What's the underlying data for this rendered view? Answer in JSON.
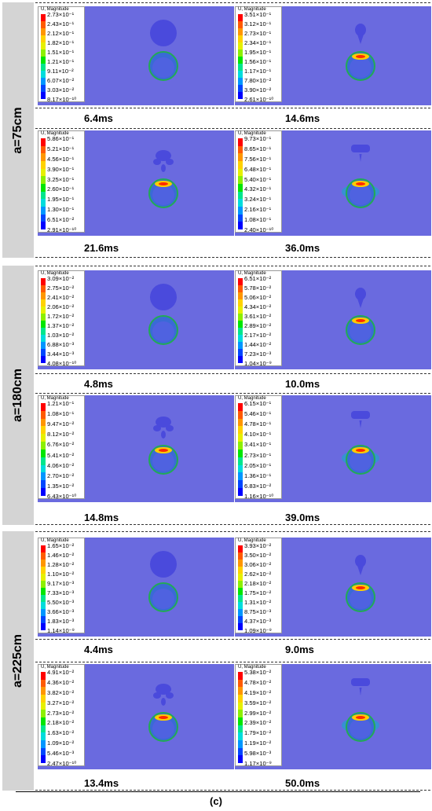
{
  "legend_title": "U, Magnitude",
  "caption": "(c)",
  "colors": [
    "#ff0000",
    "#ff5a00",
    "#ff9600",
    "#ffd200",
    "#e6f000",
    "#8cf000",
    "#00e600",
    "#00e68c",
    "#00dcdc",
    "#0096ff",
    "#0046ff",
    "#0000ff"
  ],
  "groups": [
    {
      "label": "a=75cm",
      "panels": [
        {
          "time": "6.4ms",
          "stage": 0,
          "scale": [
            "2.73×10⁻¹",
            "2.43×10⁻¹",
            "2.12×10⁻¹",
            "1.82×10⁻¹",
            "1.51×10⁻¹",
            "1.21×10⁻¹",
            "9.11×10⁻²",
            "6.07×10⁻²",
            "3.03×10⁻²",
            "8.17×10⁻¹⁰"
          ]
        },
        {
          "time": "14.6ms",
          "stage": 1,
          "scale": [
            "3.51×10⁻¹",
            "3.12×10⁻¹",
            "2.73×10⁻¹",
            "2.34×10⁻¹",
            "1.95×10⁻¹",
            "1.56×10⁻¹",
            "1.17×10⁻¹",
            "7.80×10⁻²",
            "3.90×10⁻²",
            "2.61×10⁻¹⁰"
          ]
        },
        {
          "time": "21.6ms",
          "stage": 2,
          "scale": [
            "5.86×10⁻¹",
            "5.21×10⁻¹",
            "4.56×10⁻¹",
            "3.90×10⁻¹",
            "3.25×10⁻¹",
            "2.60×10⁻¹",
            "1.95×10⁻¹",
            "1.30×10⁻¹",
            "6.51×10⁻²",
            "2.91×10⁻¹⁰"
          ]
        },
        {
          "time": "36.0ms",
          "stage": 3,
          "scale": [
            "9.73×10⁻¹",
            "8.65×10⁻¹",
            "7.56×10⁻¹",
            "6.48×10⁻¹",
            "5.40×10⁻¹",
            "4.32×10⁻¹",
            "3.24×10⁻¹",
            "2.16×10⁻¹",
            "1.08×10⁻¹",
            "2.40×10⁻¹⁰"
          ]
        }
      ]
    },
    {
      "label": "a=180cm",
      "panels": [
        {
          "time": "4.8ms",
          "stage": 0,
          "scale": [
            "3.09×10⁻²",
            "2.75×10⁻²",
            "2.41×10⁻²",
            "2.06×10⁻²",
            "1.72×10⁻²",
            "1.37×10⁻²",
            "1.03×10⁻²",
            "6.88×10⁻³",
            "3.44×10⁻³",
            "4.08×10⁻¹⁰"
          ]
        },
        {
          "time": "10.0ms",
          "stage": 1,
          "scale": [
            "6.51×10⁻²",
            "5.78×10⁻²",
            "5.06×10⁻²",
            "4.34×10⁻²",
            "3.61×10⁻²",
            "2.89×10⁻²",
            "2.17×10⁻²",
            "1.44×10⁻²",
            "7.23×10⁻³",
            "1.04×10⁻⁹"
          ]
        },
        {
          "time": "14.8ms",
          "stage": 2,
          "scale": [
            "1.21×10⁻¹",
            "1.08×10⁻¹",
            "9.47×10⁻²",
            "8.12×10⁻²",
            "6.76×10⁻²",
            "5.41×10⁻²",
            "4.06×10⁻²",
            "2.70×10⁻²",
            "1.35×10⁻²",
            "6.43×10⁻¹⁰"
          ]
        },
        {
          "time": "39.0ms",
          "stage": 3,
          "scale": [
            "6.15×10⁻¹",
            "5.46×10⁻¹",
            "4.78×10⁻¹",
            "4.10×10⁻¹",
            "3.41×10⁻¹",
            "2.73×10⁻¹",
            "2.05×10⁻¹",
            "1.36×10⁻¹",
            "6.83×10⁻²",
            "1.16×10⁻¹⁰"
          ]
        }
      ]
    },
    {
      "label": "a=225cm",
      "panels": [
        {
          "time": "4.4ms",
          "stage": 0,
          "scale": [
            "1.65×10⁻²",
            "1.46×10⁻²",
            "1.28×10⁻²",
            "1.10×10⁻²",
            "9.17×10⁻³",
            "7.33×10⁻³",
            "5.50×10⁻³",
            "3.66×10⁻³",
            "1.83×10⁻³",
            "1.14×10⁻⁹"
          ]
        },
        {
          "time": "9.0ms",
          "stage": 1,
          "scale": [
            "3.93×10⁻²",
            "3.50×10⁻²",
            "3.06×10⁻²",
            "2.62×10⁻²",
            "2.18×10⁻²",
            "1.75×10⁻²",
            "1.31×10⁻²",
            "8.75×10⁻³",
            "4.37×10⁻³",
            "1.09×10⁻⁹"
          ]
        },
        {
          "time": "13.4ms",
          "stage": 2,
          "scale": [
            "4.91×10⁻²",
            "4.36×10⁻²",
            "3.82×10⁻²",
            "3.27×10⁻²",
            "2.73×10⁻²",
            "2.18×10⁻²",
            "1.63×10⁻²",
            "1.09×10⁻²",
            "5.46×10⁻³",
            "2.47×10⁻¹⁰"
          ]
        },
        {
          "time": "50.0ms",
          "stage": 3,
          "scale": [
            "5.38×10⁻²",
            "4.78×10⁻²",
            "4.19×10⁻²",
            "3.59×10⁻²",
            "2.99×10⁻²",
            "2.39×10⁻²",
            "1.79×10⁻²",
            "1.19×10⁻²",
            "5.98×10⁻³",
            "1.17×10⁻⁹"
          ]
        }
      ]
    }
  ]
}
